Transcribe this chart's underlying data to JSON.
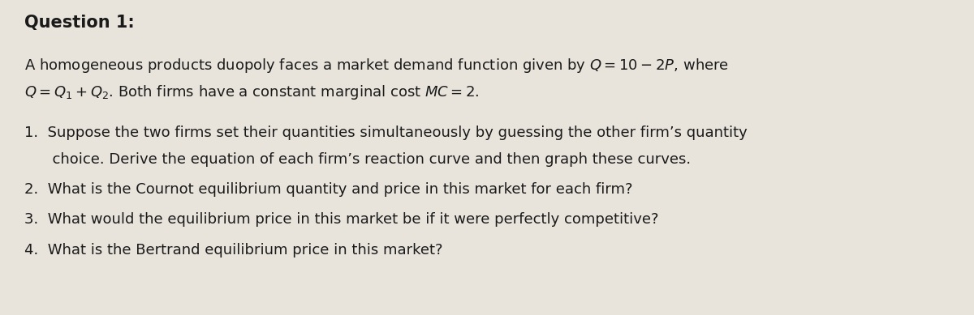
{
  "title": "Question 1:",
  "background_color": "#e8e4dc",
  "text_color": "#1a1a1a",
  "title_fontsize": 15,
  "body_fontsize": 13,
  "intro_line1": "A homogeneous products duopoly faces a market demand function given by $Q = 10 - 2P$, where",
  "intro_line2": "$Q = Q_1 + Q_2$. Both firms have a constant marginal cost $MC = 2$.",
  "item1a": "1.  Suppose the two firms set their quantities simultaneously by guessing the other firm’s quantity",
  "item1b": "      choice. Derive the equation of each firm’s reaction curve and then graph these curves.",
  "item2": "2.  What is the Cournot equilibrium quantity and price in this market for each firm?",
  "item3": "3.  What would the equilibrium price in this market be if it were perfectly competitive?",
  "item4": "4.  What is the Bertrand equilibrium price in this market?"
}
